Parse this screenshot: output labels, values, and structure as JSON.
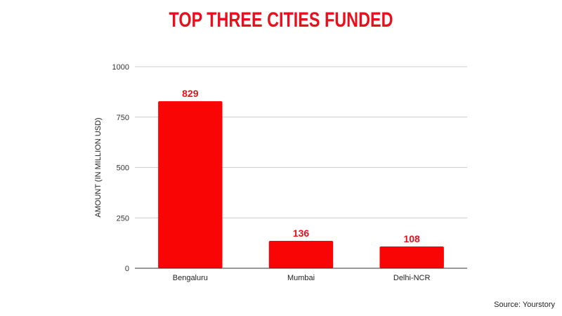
{
  "chart_data": {
    "type": "bar",
    "title": "TOP THREE CITIES FUNDED",
    "ylabel": "AMOUNT (IN MILLION USD)",
    "xlabel": "",
    "categories": [
      "Bengaluru",
      "Mumbai",
      "Delhi-NCR"
    ],
    "values": [
      829,
      136,
      108
    ],
    "ylim": [
      0,
      1000
    ],
    "yticks": [
      0,
      250,
      500,
      750,
      1000
    ],
    "grid": true,
    "legend": "none",
    "bar_color": "#fa0505",
    "label_color": "#e8101d"
  },
  "source": "Source: Yourstory"
}
